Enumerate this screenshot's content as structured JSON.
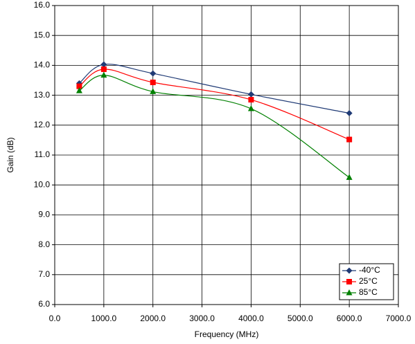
{
  "chart_data": {
    "type": "line",
    "x_label": "Frequency (MHz)",
    "y_label": "Gain (dB)",
    "x": [
      500,
      1000,
      2000,
      4000,
      6000
    ],
    "series": [
      {
        "name": "-40°C",
        "color": "#1f3a75",
        "marker": "diamond",
        "values": [
          13.4,
          14.03,
          13.73,
          13.03,
          12.4
        ]
      },
      {
        "name": "25°C",
        "color": "#ff0000",
        "marker": "square",
        "values": [
          13.3,
          13.87,
          13.43,
          12.85,
          11.52
        ]
      },
      {
        "name": "85°C",
        "color": "#008000",
        "marker": "triangle",
        "values": [
          13.15,
          13.67,
          13.12,
          12.55,
          10.25
        ]
      }
    ],
    "xlim": [
      0,
      7000
    ],
    "xticks": [
      {
        "value": 0,
        "label": "0.0"
      },
      {
        "value": 1000,
        "label": "1000.0"
      },
      {
        "value": 2000,
        "label": "2000.0"
      },
      {
        "value": 3000,
        "label": "3000.0"
      },
      {
        "value": 4000,
        "label": "4000.0"
      },
      {
        "value": 5000,
        "label": "5000.0"
      },
      {
        "value": 6000,
        "label": "6000.0"
      },
      {
        "value": 7000,
        "label": "7000.0"
      }
    ],
    "ylim": [
      6,
      16
    ],
    "yticks": [
      {
        "value": 6,
        "label": "6.0"
      },
      {
        "value": 7,
        "label": "7.0"
      },
      {
        "value": 8,
        "label": "8.0"
      },
      {
        "value": 9,
        "label": "9.0"
      },
      {
        "value": 10,
        "label": "10.0"
      },
      {
        "value": 11,
        "label": "11.0"
      },
      {
        "value": 12,
        "label": "12.0"
      },
      {
        "value": 13,
        "label": "13.0"
      },
      {
        "value": 14,
        "label": "14.0"
      },
      {
        "value": 15,
        "label": "15.0"
      },
      {
        "value": 16,
        "label": "16.0"
      }
    ],
    "grid": true,
    "smooth": true,
    "legend": "lower right"
  }
}
